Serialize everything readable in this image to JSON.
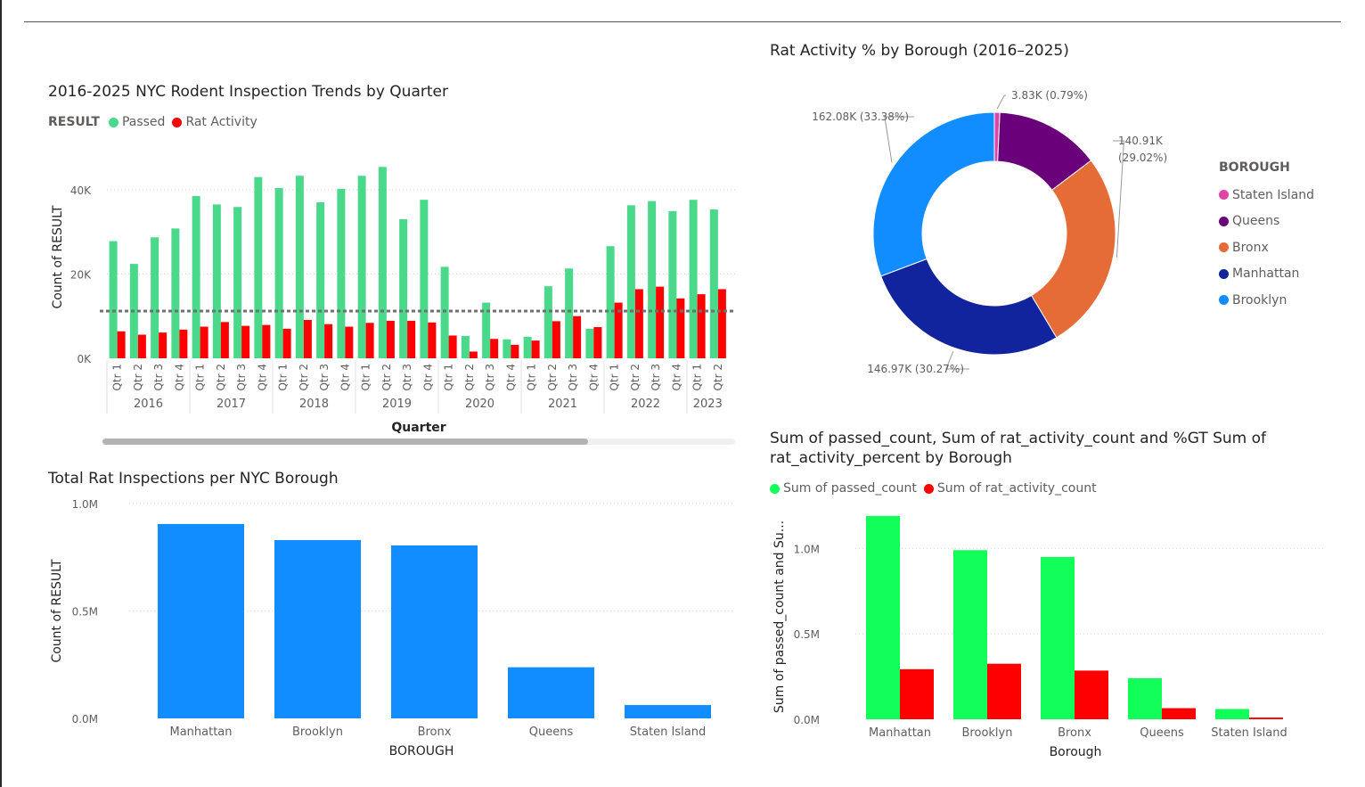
{
  "colors": {
    "passed": "#4ad98a",
    "rat": "#ff0000",
    "boroughBar": "#118dff",
    "passed2": "#12ff5a",
    "rat2": "#ff0000",
    "axis": "#605e5c",
    "grid": "#d0d0d0",
    "trend": "#707070"
  },
  "chart_data": [
    {
      "id": "quarterly",
      "type": "bar",
      "title": "2016-2025 NYC Rodent Inspection Trends by Quarter",
      "legend_title": "RESULT",
      "xlabel": "Quarter",
      "ylabel": "Count of RESULT",
      "ylim": [
        0,
        48000
      ],
      "yticks": [
        {
          "v": 0,
          "label": "0K"
        },
        {
          "v": 20000,
          "label": "20K"
        },
        {
          "v": 40000,
          "label": "40K"
        }
      ],
      "reference_line": 11200,
      "categories": [
        "Qtr 1",
        "Qtr 2",
        "Qtr 3",
        "Qtr 4",
        "Qtr 1",
        "Qtr 2",
        "Qtr 3",
        "Qtr 4",
        "Qtr 1",
        "Qtr 2",
        "Qtr 3",
        "Qtr 4",
        "Qtr 1",
        "Qtr 2",
        "Qtr 3",
        "Qtr 4",
        "Qtr 1",
        "Qtr 2",
        "Qtr 3",
        "Qtr 4",
        "Qtr 1",
        "Qtr 2",
        "Qtr 3",
        "Qtr 4",
        "Qtr 1",
        "Qtr 2",
        "Qtr 3",
        "Qtr 4",
        "Qtr 1",
        "Qtr 2"
      ],
      "years": [
        {
          "label": "2016",
          "count": 4
        },
        {
          "label": "2017",
          "count": 4
        },
        {
          "label": "2018",
          "count": 4
        },
        {
          "label": "2019",
          "count": 4
        },
        {
          "label": "2020",
          "count": 4
        },
        {
          "label": "2021",
          "count": 4
        },
        {
          "label": "2022",
          "count": 4
        },
        {
          "label": "2023",
          "count": 2
        }
      ],
      "series": [
        {
          "name": "Passed",
          "color": "#4ad98a",
          "values": [
            27800,
            22400,
            28700,
            30800,
            38500,
            36500,
            35900,
            43000,
            40400,
            43300,
            37000,
            40200,
            43300,
            45400,
            33000,
            37600,
            21700,
            5300,
            13200,
            4500,
            5100,
            17100,
            21300,
            7000,
            26600,
            36300,
            37300,
            34900,
            37600,
            35300
          ]
        },
        {
          "name": "Rat Activity",
          "color": "#ff0000",
          "values": [
            6400,
            5600,
            6100,
            6800,
            7500,
            8600,
            7700,
            7900,
            7000,
            9100,
            8100,
            7500,
            8400,
            8900,
            8900,
            8500,
            5400,
            1600,
            4600,
            3200,
            4200,
            8800,
            10000,
            7400,
            13200,
            16400,
            17000,
            14200,
            15200,
            16400
          ]
        }
      ]
    },
    {
      "id": "borough_total",
      "type": "bar",
      "title": "Total Rat Inspections per NYC Borough",
      "xlabel": "BOROUGH",
      "ylabel": "Count of RESULT",
      "ylim": [
        0,
        1000000
      ],
      "yticks": [
        {
          "v": 0,
          "label": "0.0M"
        },
        {
          "v": 500000,
          "label": "0.5M"
        },
        {
          "v": 1000000,
          "label": "1.0M"
        }
      ],
      "categories": [
        "Manhattan",
        "Brooklyn",
        "Bronx",
        "Queens",
        "Staten Island"
      ],
      "values": [
        905000,
        830000,
        805000,
        238000,
        62000
      ]
    },
    {
      "id": "donut",
      "type": "pie",
      "title": "Rat Activity % by Borough (2016–2025)",
      "legend_title": "BOROUGH",
      "slices": [
        {
          "name": "Staten Island",
          "value": 3830,
          "percent": 0.79,
          "color": "#e044a7",
          "label": "3.83K (0.79%)"
        },
        {
          "name": "Queens",
          "value": 73800,
          "percent": 15.2,
          "color": "#6b007b",
          "label": ""
        },
        {
          "name": "Bronx",
          "value": 140910,
          "percent": 29.02,
          "color": "#e66c37",
          "label": "140.91K (29.02%)"
        },
        {
          "name": "Manhattan",
          "value": 146970,
          "percent": 30.27,
          "color": "#12239e",
          "label": "146.97K (30.27%)"
        },
        {
          "name": "Brooklyn",
          "value": 162080,
          "percent": 33.38,
          "color": "#118dff",
          "label": "162.08K (33.38%)"
        }
      ]
    },
    {
      "id": "passed_vs_rat",
      "type": "bar",
      "title": "Sum of passed_count, Sum of rat_activity_count and %GT Sum of rat_activity_percent by Borough",
      "xlabel": "Borough",
      "ylabel": "Sum of passed_count and Su...",
      "ylim": [
        0,
        1200000
      ],
      "yticks": [
        {
          "v": 0,
          "label": "0.0M"
        },
        {
          "v": 500000,
          "label": "0.5M"
        },
        {
          "v": 1000000,
          "label": "1.0M"
        }
      ],
      "categories": [
        "Manhattan",
        "Brooklyn",
        "Bronx",
        "Queens",
        "Staten Island"
      ],
      "series": [
        {
          "name": "Sum of passed_count",
          "color": "#12ff5a",
          "values": [
            1190000,
            990000,
            950000,
            240000,
            60000
          ]
        },
        {
          "name": "Sum of rat_activity_count",
          "color": "#ff0000",
          "values": [
            293000,
            325000,
            285000,
            65000,
            10000
          ]
        }
      ]
    }
  ]
}
